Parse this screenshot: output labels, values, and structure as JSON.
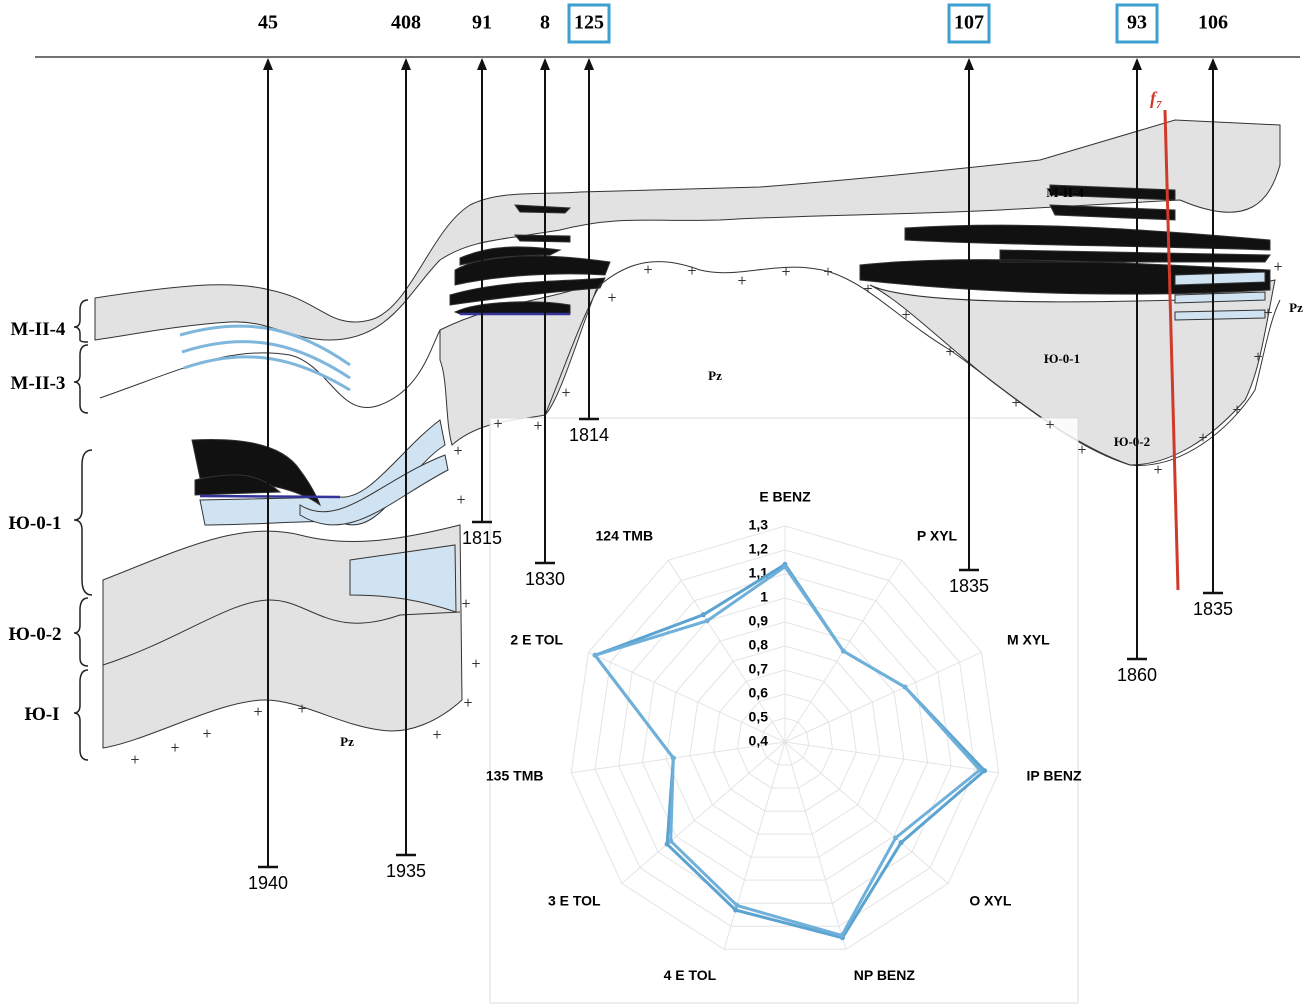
{
  "wells": [
    {
      "label": "45",
      "depth": "1940",
      "boxed": false
    },
    {
      "label": "408",
      "depth": "1935",
      "boxed": false
    },
    {
      "label": "91",
      "depth": "1815",
      "boxed": false
    },
    {
      "label": "8",
      "depth": "1830",
      "boxed": false
    },
    {
      "label": "125",
      "depth": "1814",
      "boxed": true
    },
    {
      "label": "107",
      "depth": "1835",
      "boxed": true
    },
    {
      "label": "93",
      "depth": "1860",
      "boxed": true
    },
    {
      "label": "106",
      "depth": "1835",
      "boxed": false
    }
  ],
  "formations": [
    "М-II-4",
    "М-II-3",
    "Ю-0-1",
    "Ю-0-2",
    "Ю-I"
  ],
  "section_labels": {
    "pz_center": "Pz",
    "pz_left": "Pz",
    "pz_right": "Pz",
    "yu01": "Ю-0-1",
    "yu02": "Ю-0-2",
    "m24": "М-II-4",
    "fault": {
      "letter": "f",
      "subscript": "7"
    }
  },
  "chart_data": {
    "type": "radar",
    "categories": [
      "E BENZ",
      "P XYL",
      "M XYL",
      "IP BENZ",
      "O XYL",
      "NP BENZ",
      "4 E TOL",
      "3 E TOL",
      "135 TMB",
      "2 E TOL",
      "124 TMB"
    ],
    "rlim": [
      0.4,
      1.3
    ],
    "rticks": [
      {
        "value": 0.4,
        "label": "0,4"
      },
      {
        "value": 0.5,
        "label": "0,5"
      },
      {
        "value": 0.6,
        "label": "0,6"
      },
      {
        "value": 0.7,
        "label": "0,7"
      },
      {
        "value": 0.8,
        "label": "0,8"
      },
      {
        "value": 0.9,
        "label": "0,9"
      },
      1,
      {
        "value": 1.1,
        "label": "1,1"
      },
      {
        "value": 1.2,
        "label": "1,2"
      },
      {
        "value": 1.3,
        "label": "1,3"
      }
    ],
    "grid": true,
    "series": [
      {
        "color": "#5ba3d0",
        "values": [
          1.14,
          0.85,
          0.95,
          1.24,
          1.04,
          1.25,
          1.13,
          1.05,
          0.87,
          1.27,
          1.03
        ]
      },
      {
        "color": "#6fb0da",
        "values": [
          1.13,
          0.85,
          0.95,
          1.22,
          1.01,
          1.24,
          1.11,
          1.03,
          0.87,
          1.27,
          1.0
        ]
      }
    ]
  }
}
